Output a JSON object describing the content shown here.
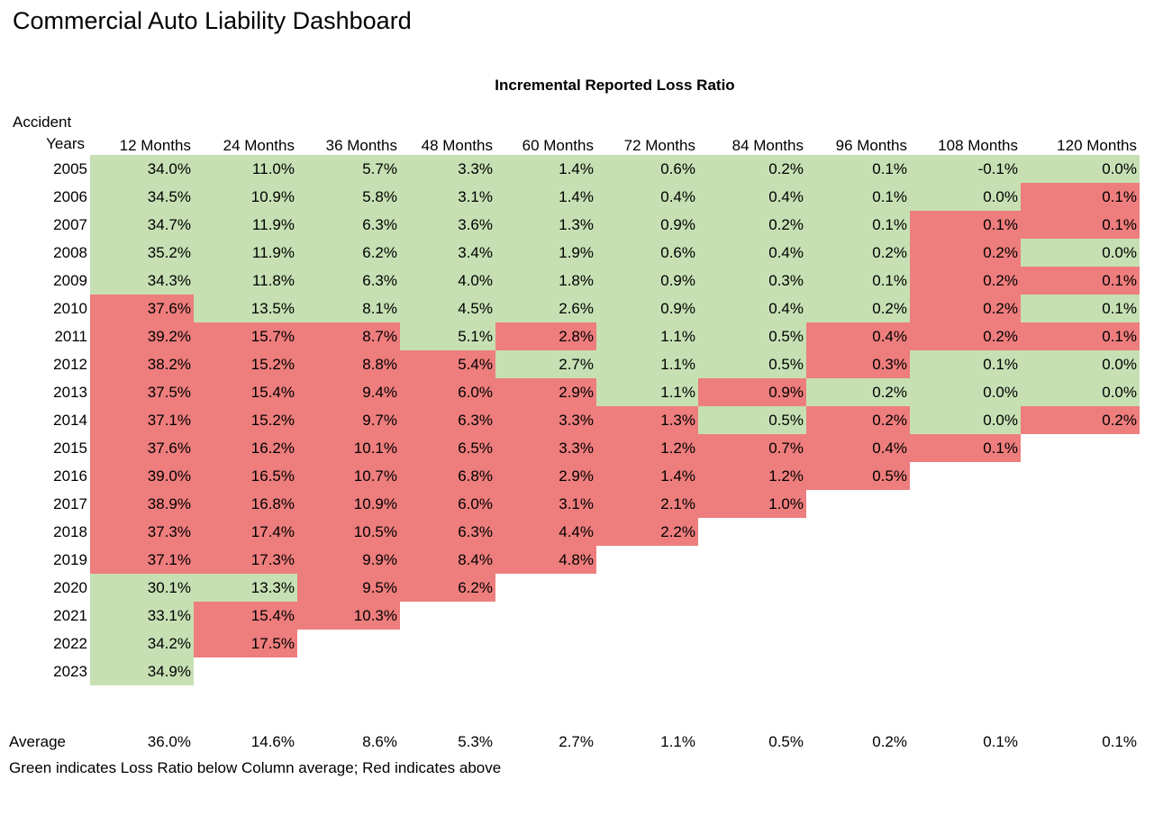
{
  "title": "Commercial Auto Liability Dashboard",
  "colors": {
    "below_average_green": "#c6e0b4",
    "above_average_red": "#ee7d7d"
  },
  "chart_data": {
    "type": "heatmap",
    "title": "Incremental Reported Loss Ratio",
    "row_axis_label": [
      "Accident",
      "Years"
    ],
    "columns": [
      "12 Months",
      "24 Months",
      "36 Months",
      "48 Months",
      "60 Months",
      "72 Months",
      "84 Months",
      "96 Months",
      "108 Months",
      "120 Months"
    ],
    "color_legend": {
      "g": "below column average (green)",
      "r": "above column average (red)"
    },
    "rows": [
      {
        "year": "2005",
        "values": [
          "34.0%",
          "11.0%",
          "5.7%",
          "3.3%",
          "1.4%",
          "0.6%",
          "0.2%",
          "0.1%",
          "-0.1%",
          "0.0%"
        ],
        "colors": [
          "g",
          "g",
          "g",
          "g",
          "g",
          "g",
          "g",
          "g",
          "g",
          "g"
        ]
      },
      {
        "year": "2006",
        "values": [
          "34.5%",
          "10.9%",
          "5.8%",
          "3.1%",
          "1.4%",
          "0.4%",
          "0.4%",
          "0.1%",
          "0.0%",
          "0.1%"
        ],
        "colors": [
          "g",
          "g",
          "g",
          "g",
          "g",
          "g",
          "g",
          "g",
          "g",
          "r"
        ]
      },
      {
        "year": "2007",
        "values": [
          "34.7%",
          "11.9%",
          "6.3%",
          "3.6%",
          "1.3%",
          "0.9%",
          "0.2%",
          "0.1%",
          "0.1%",
          "0.1%"
        ],
        "colors": [
          "g",
          "g",
          "g",
          "g",
          "g",
          "g",
          "g",
          "g",
          "r",
          "r"
        ]
      },
      {
        "year": "2008",
        "values": [
          "35.2%",
          "11.9%",
          "6.2%",
          "3.4%",
          "1.9%",
          "0.6%",
          "0.4%",
          "0.2%",
          "0.2%",
          "0.0%"
        ],
        "colors": [
          "g",
          "g",
          "g",
          "g",
          "g",
          "g",
          "g",
          "g",
          "r",
          "g"
        ]
      },
      {
        "year": "2009",
        "values": [
          "34.3%",
          "11.8%",
          "6.3%",
          "4.0%",
          "1.8%",
          "0.9%",
          "0.3%",
          "0.1%",
          "0.2%",
          "0.1%"
        ],
        "colors": [
          "g",
          "g",
          "g",
          "g",
          "g",
          "g",
          "g",
          "g",
          "r",
          "r"
        ]
      },
      {
        "year": "2010",
        "values": [
          "37.6%",
          "13.5%",
          "8.1%",
          "4.5%",
          "2.6%",
          "0.9%",
          "0.4%",
          "0.2%",
          "0.2%",
          "0.1%"
        ],
        "colors": [
          "r",
          "g",
          "g",
          "g",
          "g",
          "g",
          "g",
          "g",
          "r",
          "g"
        ]
      },
      {
        "year": "2011",
        "values": [
          "39.2%",
          "15.7%",
          "8.7%",
          "5.1%",
          "2.8%",
          "1.1%",
          "0.5%",
          "0.4%",
          "0.2%",
          "0.1%"
        ],
        "colors": [
          "r",
          "r",
          "r",
          "g",
          "r",
          "g",
          "g",
          "r",
          "r",
          "r"
        ]
      },
      {
        "year": "2012",
        "values": [
          "38.2%",
          "15.2%",
          "8.8%",
          "5.4%",
          "2.7%",
          "1.1%",
          "0.5%",
          "0.3%",
          "0.1%",
          "0.0%"
        ],
        "colors": [
          "r",
          "r",
          "r",
          "r",
          "g",
          "g",
          "g",
          "r",
          "g",
          "g"
        ]
      },
      {
        "year": "2013",
        "values": [
          "37.5%",
          "15.4%",
          "9.4%",
          "6.0%",
          "2.9%",
          "1.1%",
          "0.9%",
          "0.2%",
          "0.0%",
          "0.0%"
        ],
        "colors": [
          "r",
          "r",
          "r",
          "r",
          "r",
          "g",
          "r",
          "g",
          "g",
          "g"
        ]
      },
      {
        "year": "2014",
        "values": [
          "37.1%",
          "15.2%",
          "9.7%",
          "6.3%",
          "3.3%",
          "1.3%",
          "0.5%",
          "0.2%",
          "0.0%",
          "0.2%"
        ],
        "colors": [
          "r",
          "r",
          "r",
          "r",
          "r",
          "r",
          "g",
          "r",
          "g",
          "r"
        ]
      },
      {
        "year": "2015",
        "values": [
          "37.6%",
          "16.2%",
          "10.1%",
          "6.5%",
          "3.3%",
          "1.2%",
          "0.7%",
          "0.4%",
          "0.1%"
        ],
        "colors": [
          "r",
          "r",
          "r",
          "r",
          "r",
          "r",
          "r",
          "r",
          "r"
        ]
      },
      {
        "year": "2016",
        "values": [
          "39.0%",
          "16.5%",
          "10.7%",
          "6.8%",
          "2.9%",
          "1.4%",
          "1.2%",
          "0.5%"
        ],
        "colors": [
          "r",
          "r",
          "r",
          "r",
          "r",
          "r",
          "r",
          "r"
        ]
      },
      {
        "year": "2017",
        "values": [
          "38.9%",
          "16.8%",
          "10.9%",
          "6.0%",
          "3.1%",
          "2.1%",
          "1.0%"
        ],
        "colors": [
          "r",
          "r",
          "r",
          "r",
          "r",
          "r",
          "r"
        ]
      },
      {
        "year": "2018",
        "values": [
          "37.3%",
          "17.4%",
          "10.5%",
          "6.3%",
          "4.4%",
          "2.2%"
        ],
        "colors": [
          "r",
          "r",
          "r",
          "r",
          "r",
          "r"
        ]
      },
      {
        "year": "2019",
        "values": [
          "37.1%",
          "17.3%",
          "9.9%",
          "8.4%",
          "4.8%"
        ],
        "colors": [
          "r",
          "r",
          "r",
          "r",
          "r"
        ]
      },
      {
        "year": "2020",
        "values": [
          "30.1%",
          "13.3%",
          "9.5%",
          "6.2%"
        ],
        "colors": [
          "g",
          "g",
          "r",
          "r"
        ]
      },
      {
        "year": "2021",
        "values": [
          "33.1%",
          "15.4%",
          "10.3%"
        ],
        "colors": [
          "g",
          "r",
          "r"
        ]
      },
      {
        "year": "2022",
        "values": [
          "34.2%",
          "17.5%"
        ],
        "colors": [
          "g",
          "r"
        ]
      },
      {
        "year": "2023",
        "values": [
          "34.9%"
        ],
        "colors": [
          "g"
        ]
      }
    ],
    "average_row": {
      "label": "Average",
      "values": [
        "36.0%",
        "14.6%",
        "8.6%",
        "5.3%",
        "2.7%",
        "1.1%",
        "0.5%",
        "0.2%",
        "0.1%",
        "0.1%"
      ]
    },
    "footnote": "Green indicates Loss Ratio below Column average; Red indicates above"
  }
}
